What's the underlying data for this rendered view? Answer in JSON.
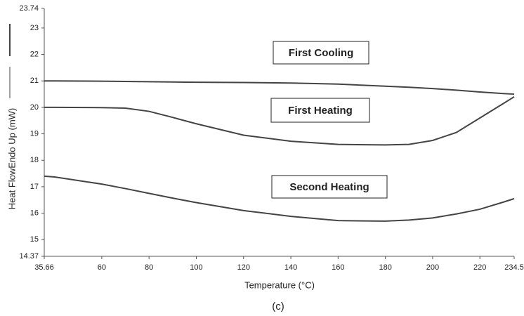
{
  "chart_data": {
    "type": "line",
    "xlabel": "Temperature (°C)",
    "ylabel": "Heat FlowEndo Up (mW)",
    "caption": "(c)",
    "x": [
      35.66,
      40,
      60,
      70,
      80,
      90,
      100,
      120,
      140,
      160,
      180,
      190,
      200,
      210,
      220,
      230,
      234.5
    ],
    "series": [
      {
        "name": "First Cooling",
        "color": "#444444",
        "values": [
          21,
          21,
          20.99,
          20.98,
          20.97,
          20.96,
          20.95,
          20.94,
          20.92,
          20.88,
          20.8,
          20.76,
          20.71,
          20.65,
          20.58,
          20.52,
          20.5
        ]
      },
      {
        "name": "First Heating",
        "color": "#444444",
        "values": [
          20.0,
          20.0,
          19.99,
          19.97,
          19.85,
          19.62,
          19.38,
          18.95,
          18.72,
          18.6,
          18.58,
          18.6,
          18.75,
          19.05,
          19.6,
          20.15,
          20.4
        ]
      },
      {
        "name": "Second Heating",
        "color": "#444444",
        "values": [
          17.4,
          17.37,
          17.1,
          16.93,
          16.75,
          16.57,
          16.4,
          16.1,
          15.88,
          15.72,
          15.7,
          15.74,
          15.82,
          15.97,
          16.15,
          16.42,
          16.55
        ]
      }
    ],
    "xlim": [
      35.66,
      234.5
    ],
    "xticks": [
      35.66,
      60,
      80,
      100,
      120,
      140,
      160,
      180,
      200,
      220,
      234.5
    ],
    "ylim": [
      14.37,
      23.74
    ],
    "yticks": [
      14.37,
      15,
      16,
      17,
      18,
      19,
      20,
      21,
      22,
      23,
      23.74
    ],
    "grid": false
  }
}
